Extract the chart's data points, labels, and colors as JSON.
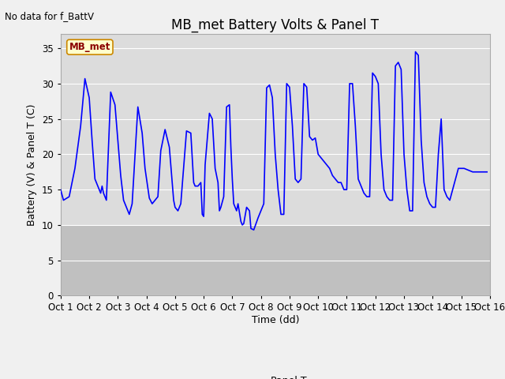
{
  "title": "MB_met Battery Volts & Panel T",
  "no_data_label": "No data for f_BattV",
  "ylabel": "Battery (V) & Panel T (C)",
  "xlabel": "Time (dd)",
  "legend_label": "Panel T",
  "legend_label_series": "MB_met",
  "ylim": [
    0,
    37
  ],
  "yticks": [
    0,
    5,
    10,
    15,
    20,
    25,
    30,
    35
  ],
  "line_color": "blue",
  "line_width": 1.2,
  "fig_bg_color": "#f0f0f0",
  "plot_bg_upper": "#dcdcdc",
  "plot_bg_lower": "#c8c8c8",
  "title_fontsize": 12,
  "label_fontsize": 9,
  "tick_fontsize": 8.5,
  "x_start": 1,
  "x_end": 16,
  "x_ticks": [
    1,
    2,
    3,
    4,
    5,
    6,
    7,
    8,
    9,
    10,
    11,
    12,
    13,
    14,
    15,
    16
  ],
  "x_tick_labels": [
    "Oct 1",
    "Oct 2",
    "Oct 3",
    "Oct 4",
    "Oct 5",
    "Oct 6",
    "Oct 7",
    "Oct 8",
    "Oct 9",
    "Oct 10",
    "Oct 11",
    "Oct 12",
    "Oct 13",
    "Oct 14",
    "Oct 15",
    "Oct 16"
  ],
  "panel_t_data": [
    [
      1.0,
      15.0
    ],
    [
      1.1,
      13.5
    ],
    [
      1.3,
      14.0
    ],
    [
      1.5,
      18.0
    ],
    [
      1.7,
      24.0
    ],
    [
      1.85,
      30.7
    ],
    [
      2.0,
      28.0
    ],
    [
      2.1,
      22.0
    ],
    [
      2.2,
      16.5
    ],
    [
      2.3,
      15.5
    ],
    [
      2.4,
      14.5
    ],
    [
      2.45,
      15.5
    ],
    [
      2.5,
      14.5
    ],
    [
      2.6,
      13.5
    ],
    [
      2.75,
      28.8
    ],
    [
      2.9,
      27.0
    ],
    [
      3.0,
      22.0
    ],
    [
      3.1,
      17.0
    ],
    [
      3.2,
      13.5
    ],
    [
      3.3,
      12.5
    ],
    [
      3.4,
      11.5
    ],
    [
      3.5,
      13.0
    ],
    [
      3.7,
      26.7
    ],
    [
      3.85,
      23.0
    ],
    [
      3.95,
      18.0
    ],
    [
      4.1,
      13.8
    ],
    [
      4.2,
      13.0
    ],
    [
      4.3,
      13.5
    ],
    [
      4.4,
      14.0
    ],
    [
      4.5,
      20.5
    ],
    [
      4.65,
      23.5
    ],
    [
      4.8,
      21.0
    ],
    [
      4.95,
      13.5
    ],
    [
      5.0,
      12.5
    ],
    [
      5.1,
      12.0
    ],
    [
      5.2,
      13.0
    ],
    [
      5.4,
      23.3
    ],
    [
      5.55,
      23.0
    ],
    [
      5.65,
      16.0
    ],
    [
      5.7,
      15.5
    ],
    [
      5.8,
      15.5
    ],
    [
      5.9,
      16.0
    ],
    [
      5.95,
      11.5
    ],
    [
      6.0,
      11.2
    ],
    [
      6.05,
      18.5
    ],
    [
      6.2,
      25.8
    ],
    [
      6.3,
      25.0
    ],
    [
      6.4,
      18.0
    ],
    [
      6.5,
      16.0
    ],
    [
      6.55,
      12.0
    ],
    [
      6.6,
      12.5
    ],
    [
      6.7,
      14.0
    ],
    [
      6.8,
      26.7
    ],
    [
      6.9,
      27.0
    ],
    [
      6.95,
      21.0
    ],
    [
      7.0,
      16.5
    ],
    [
      7.05,
      13.0
    ],
    [
      7.1,
      12.5
    ],
    [
      7.15,
      12.0
    ],
    [
      7.2,
      13.0
    ],
    [
      7.3,
      10.5
    ],
    [
      7.35,
      10.0
    ],
    [
      7.4,
      10.2
    ],
    [
      7.5,
      12.5
    ],
    [
      7.6,
      12.0
    ],
    [
      7.65,
      9.5
    ],
    [
      7.75,
      9.3
    ],
    [
      7.9,
      11.0
    ],
    [
      8.0,
      12.0
    ],
    [
      8.1,
      13.0
    ],
    [
      8.2,
      29.4
    ],
    [
      8.3,
      29.8
    ],
    [
      8.4,
      28.0
    ],
    [
      8.5,
      20.0
    ],
    [
      8.6,
      15.0
    ],
    [
      8.7,
      11.5
    ],
    [
      8.8,
      11.5
    ],
    [
      8.9,
      30.0
    ],
    [
      9.0,
      29.5
    ],
    [
      9.1,
      24.0
    ],
    [
      9.2,
      16.5
    ],
    [
      9.3,
      16.0
    ],
    [
      9.4,
      16.5
    ],
    [
      9.5,
      30.0
    ],
    [
      9.6,
      29.5
    ],
    [
      9.7,
      22.5
    ],
    [
      9.8,
      22.0
    ],
    [
      9.9,
      22.3
    ],
    [
      10.0,
      20.0
    ],
    [
      10.1,
      19.5
    ],
    [
      10.2,
      19.0
    ],
    [
      10.3,
      18.5
    ],
    [
      10.4,
      18.0
    ],
    [
      10.5,
      17.0
    ],
    [
      10.6,
      16.5
    ],
    [
      10.7,
      16.0
    ],
    [
      10.8,
      16.0
    ],
    [
      10.9,
      15.0
    ],
    [
      11.0,
      15.0
    ],
    [
      11.1,
      30.0
    ],
    [
      11.2,
      30.0
    ],
    [
      11.3,
      24.0
    ],
    [
      11.4,
      16.5
    ],
    [
      11.5,
      15.5
    ],
    [
      11.6,
      14.5
    ],
    [
      11.7,
      14.0
    ],
    [
      11.8,
      14.0
    ],
    [
      11.9,
      31.5
    ],
    [
      12.0,
      31.0
    ],
    [
      12.1,
      30.0
    ],
    [
      12.2,
      20.0
    ],
    [
      12.3,
      15.0
    ],
    [
      12.4,
      14.0
    ],
    [
      12.5,
      13.5
    ],
    [
      12.6,
      13.5
    ],
    [
      12.7,
      32.5
    ],
    [
      12.8,
      33.0
    ],
    [
      12.9,
      32.0
    ],
    [
      13.0,
      20.0
    ],
    [
      13.1,
      15.0
    ],
    [
      13.2,
      12.0
    ],
    [
      13.3,
      12.0
    ],
    [
      13.4,
      34.5
    ],
    [
      13.5,
      34.0
    ],
    [
      13.6,
      22.0
    ],
    [
      13.7,
      16.0
    ],
    [
      13.8,
      14.0
    ],
    [
      13.9,
      13.0
    ],
    [
      14.0,
      12.5
    ],
    [
      14.1,
      12.5
    ],
    [
      14.2,
      20.0
    ],
    [
      14.3,
      25.0
    ],
    [
      14.4,
      15.0
    ],
    [
      14.5,
      14.0
    ],
    [
      14.6,
      13.5
    ],
    [
      14.9,
      18.0
    ],
    [
      15.1,
      18.0
    ],
    [
      15.4,
      17.5
    ],
    [
      15.7,
      17.5
    ],
    [
      15.9,
      17.5
    ]
  ]
}
